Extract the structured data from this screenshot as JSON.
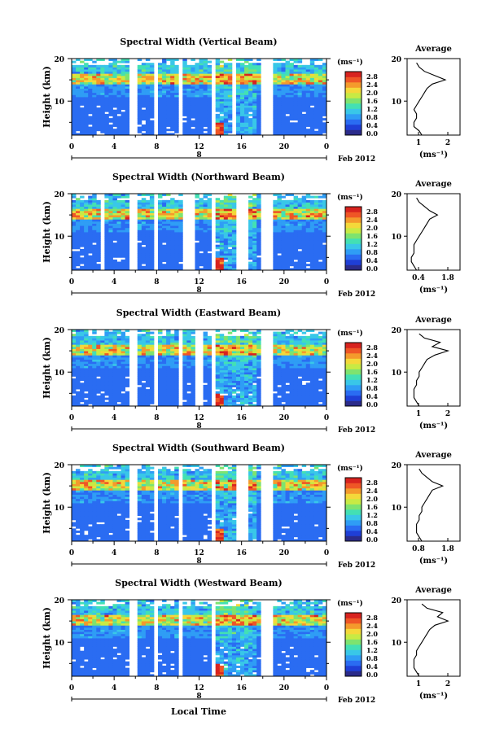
{
  "colors": {
    "scale": [
      "#2b2b8a",
      "#1f3fd6",
      "#2a6cf2",
      "#2f9df5",
      "#39c7e8",
      "#43e0b4",
      "#7ee36f",
      "#c8ea44",
      "#f4d83a",
      "#f49a2c",
      "#ef5626",
      "#d8231f"
    ],
    "axis": "#000000",
    "gap": "#ffffff"
  },
  "xaxis": {
    "title": "Local Time",
    "date_label": "Feb 2012",
    "day_label": "8",
    "ticks": [
      "0",
      "4",
      "8",
      "12",
      "16",
      "20",
      "0"
    ]
  },
  "colorbar": {
    "unit": "(ms⁻¹)",
    "ticks": [
      "2.8",
      "2.4",
      "2.0",
      "1.6",
      "1.2",
      "0.8",
      "0.4",
      "0.0"
    ]
  },
  "yaxis": {
    "label": "Height (km)",
    "ticks": [
      "20",
      "10"
    ]
  },
  "profile": {
    "title": "Average",
    "xlabel": "(ms⁻¹)",
    "yticks": [
      "20",
      "10"
    ]
  },
  "panels": [
    {
      "title": "Spectral Width (Vertical Beam)",
      "avg_ticks": [
        "1",
        "2"
      ]
    },
    {
      "title": "Spectral Width (Northward Beam)",
      "avg_ticks": [
        "0.4",
        "1.8"
      ]
    },
    {
      "title": "Spectral Width (Eastward Beam)",
      "avg_ticks": [
        "1",
        "2"
      ]
    },
    {
      "title": "Spectral Width (Southward Beam)",
      "avg_ticks": [
        "0.8",
        "1.8"
      ]
    },
    {
      "title": "Spectral Width (Westward Beam)",
      "avg_ticks": [
        "1",
        "2"
      ]
    }
  ],
  "chart_data": [
    {
      "type": "heatmap",
      "title": "Spectral Width (Vertical Beam)",
      "xlabel": "Local Time",
      "ylabel": "Height (km)",
      "xlim": [
        0,
        24
      ],
      "ylim": [
        2,
        20
      ],
      "zlim": [
        0.0,
        3.0
      ],
      "data_gaps_hours": [
        [
          5.5,
          6.0
        ],
        [
          7.8,
          8.0
        ],
        [
          10.0,
          10.5
        ],
        [
          13.0,
          13.5
        ],
        [
          15.0,
          15.3
        ],
        [
          17.8,
          18.8
        ]
      ],
      "average_profile": {
        "x_units": "ms-1",
        "height_km": [
          2,
          3,
          4,
          5,
          6,
          7,
          8,
          9,
          10,
          11,
          12,
          13,
          14,
          15,
          16,
          17,
          18,
          19
        ],
        "width": [
          0.9,
          0.8,
          0.6,
          0.6,
          0.7,
          0.7,
          0.6,
          0.7,
          0.8,
          0.9,
          1.0,
          1.1,
          1.3,
          1.8,
          1.4,
          1.0,
          0.8,
          0.7
        ]
      }
    },
    {
      "type": "heatmap",
      "title": "Spectral Width (Northward Beam)",
      "xlabel": "Local Time",
      "ylabel": "Height (km)",
      "xlim": [
        0,
        24
      ],
      "ylim": [
        2,
        20
      ],
      "zlim": [
        0.0,
        3.0
      ],
      "data_gaps_hours": [
        [
          2.8,
          3.0
        ],
        [
          5.5,
          6.0
        ],
        [
          7.8,
          8.0
        ],
        [
          10.5,
          11.5
        ],
        [
          13.0,
          13.5
        ],
        [
          15.5,
          16.5
        ],
        [
          18.0,
          18.8
        ]
      ],
      "average_profile": {
        "x_units": "ms-1",
        "height_km": [
          2,
          3,
          4,
          5,
          6,
          7,
          8,
          9,
          10,
          11,
          12,
          13,
          14,
          15,
          16,
          17,
          18,
          19
        ],
        "width": [
          0.7,
          0.6,
          0.5,
          0.5,
          0.6,
          0.6,
          0.6,
          0.7,
          0.8,
          0.9,
          1.0,
          1.1,
          1.2,
          1.5,
          1.2,
          1.0,
          0.8,
          0.7
        ]
      }
    },
    {
      "type": "heatmap",
      "title": "Spectral Width (Eastward Beam)",
      "xlabel": "Local Time",
      "ylabel": "Height (km)",
      "xlim": [
        0,
        24
      ],
      "ylim": [
        2,
        20
      ],
      "zlim": [
        0.0,
        3.0
      ],
      "data_gaps_hours": [
        [
          5.5,
          6.0
        ],
        [
          7.8,
          8.0
        ],
        [
          10.0,
          10.5
        ],
        [
          11.5,
          12.5
        ],
        [
          13.0,
          13.5
        ],
        [
          17.8,
          18.8
        ]
      ],
      "average_profile": {
        "x_units": "ms-1",
        "height_km": [
          2,
          3,
          4,
          5,
          6,
          7,
          8,
          9,
          10,
          11,
          12,
          13,
          14,
          15,
          16,
          17,
          18,
          19
        ],
        "width": [
          0.8,
          0.7,
          0.6,
          0.6,
          0.6,
          0.7,
          0.7,
          0.8,
          0.8,
          0.9,
          1.0,
          1.1,
          1.4,
          1.9,
          1.3,
          1.6,
          1.0,
          0.8
        ]
      }
    },
    {
      "type": "heatmap",
      "title": "Spectral Width (Southward Beam)",
      "xlabel": "Local Time",
      "ylabel": "Height (km)",
      "xlim": [
        0,
        24
      ],
      "ylim": [
        2,
        20
      ],
      "zlim": [
        0.0,
        3.0
      ],
      "data_gaps_hours": [
        [
          5.5,
          6.0
        ],
        [
          7.8,
          8.0
        ],
        [
          10.0,
          10.5
        ],
        [
          13.0,
          13.5
        ],
        [
          15.5,
          16.5
        ],
        [
          17.8,
          18.8
        ]
      ],
      "average_profile": {
        "x_units": "ms-1",
        "height_km": [
          2,
          3,
          4,
          5,
          6,
          7,
          8,
          9,
          10,
          11,
          12,
          13,
          14,
          15,
          16,
          17,
          18,
          19
        ],
        "width": [
          0.9,
          0.8,
          0.7,
          0.7,
          0.7,
          0.8,
          0.8,
          0.9,
          0.9,
          1.0,
          1.1,
          1.2,
          1.3,
          1.7,
          1.3,
          1.1,
          0.9,
          0.8
        ]
      }
    },
    {
      "type": "heatmap",
      "title": "Spectral Width (Westward Beam)",
      "xlabel": "Local Time",
      "ylabel": "Height (km)",
      "xlim": [
        0,
        24
      ],
      "ylim": [
        2,
        20
      ],
      "zlim": [
        0.0,
        3.0
      ],
      "data_gaps_hours": [
        [
          5.5,
          6.0
        ],
        [
          7.8,
          8.0
        ],
        [
          10.0,
          10.5
        ],
        [
          13.0,
          13.5
        ],
        [
          17.8,
          18.8
        ]
      ],
      "average_profile": {
        "x_units": "ms-1",
        "height_km": [
          2,
          3,
          4,
          5,
          6,
          7,
          8,
          9,
          10,
          11,
          12,
          13,
          14,
          15,
          16,
          17,
          18,
          19
        ],
        "width": [
          0.8,
          0.7,
          0.6,
          0.6,
          0.6,
          0.7,
          0.7,
          0.8,
          0.9,
          1.0,
          1.1,
          1.2,
          1.4,
          1.9,
          1.5,
          1.7,
          1.1,
          0.9
        ]
      }
    }
  ]
}
